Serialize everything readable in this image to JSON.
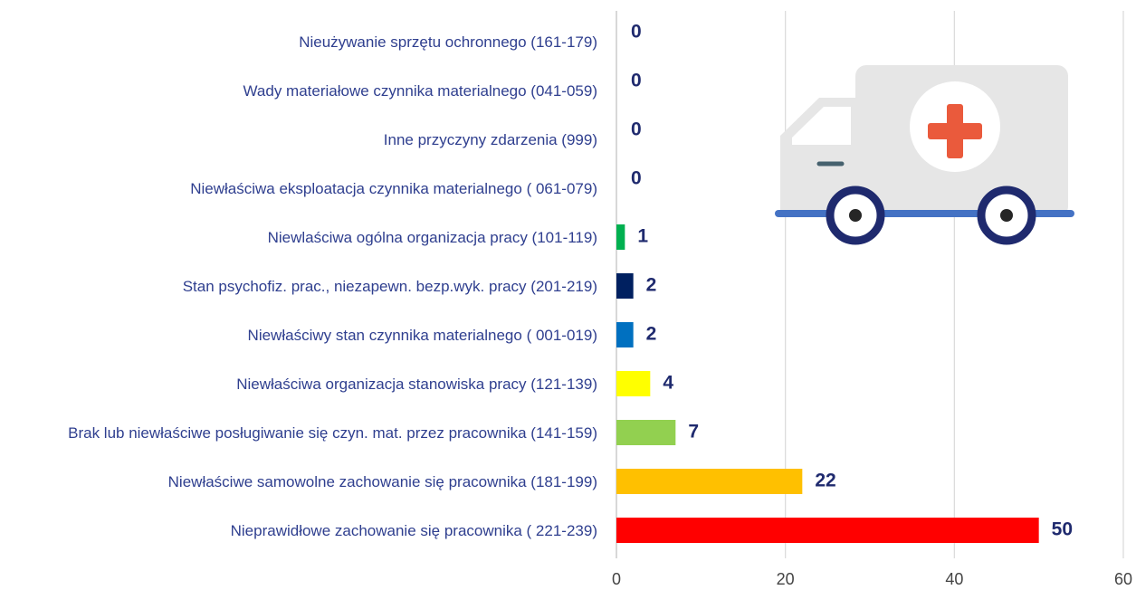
{
  "chart_data": {
    "type": "barh",
    "categories": [
      "Nieużywanie sprzętu ochronnego (161-179)",
      "Wady materiałowe czynnika materialnego (041-059)",
      "Inne przyczyny zdarzenia (999)",
      "Niewłaściwa eksploatacja czynnika materialnego ( 061-079)",
      "Niewlaściwa ogólna organizacja pracy (101-119)",
      "Stan psychofiz. prac., niezapewn. bezp.wyk. pracy  (201-219)",
      "Niewłaściwy stan czynnika materialnego ( 001-019)",
      "Niewłaściwa organizacja stanowiska pracy (121-139)",
      "Brak lub niewłaściwe posługiwanie się czyn. mat. przez pracownika (141-159)",
      "Niewłaściwe samowolne zachowanie się pracownika (181-199)",
      "Nieprawidłowe zachowanie się pracownika ( 221-239)"
    ],
    "values": [
      0,
      0,
      0,
      0,
      1,
      2,
      2,
      4,
      7,
      22,
      50
    ],
    "colors": [
      null,
      null,
      null,
      null,
      "#00b050",
      "#002060",
      "#0070c0",
      "#ffff00",
      "#92d050",
      "#ffc000",
      "#ff0000"
    ],
    "xlim": [
      0,
      60
    ],
    "xticks": [
      0,
      20,
      40,
      60
    ],
    "grid": true
  }
}
